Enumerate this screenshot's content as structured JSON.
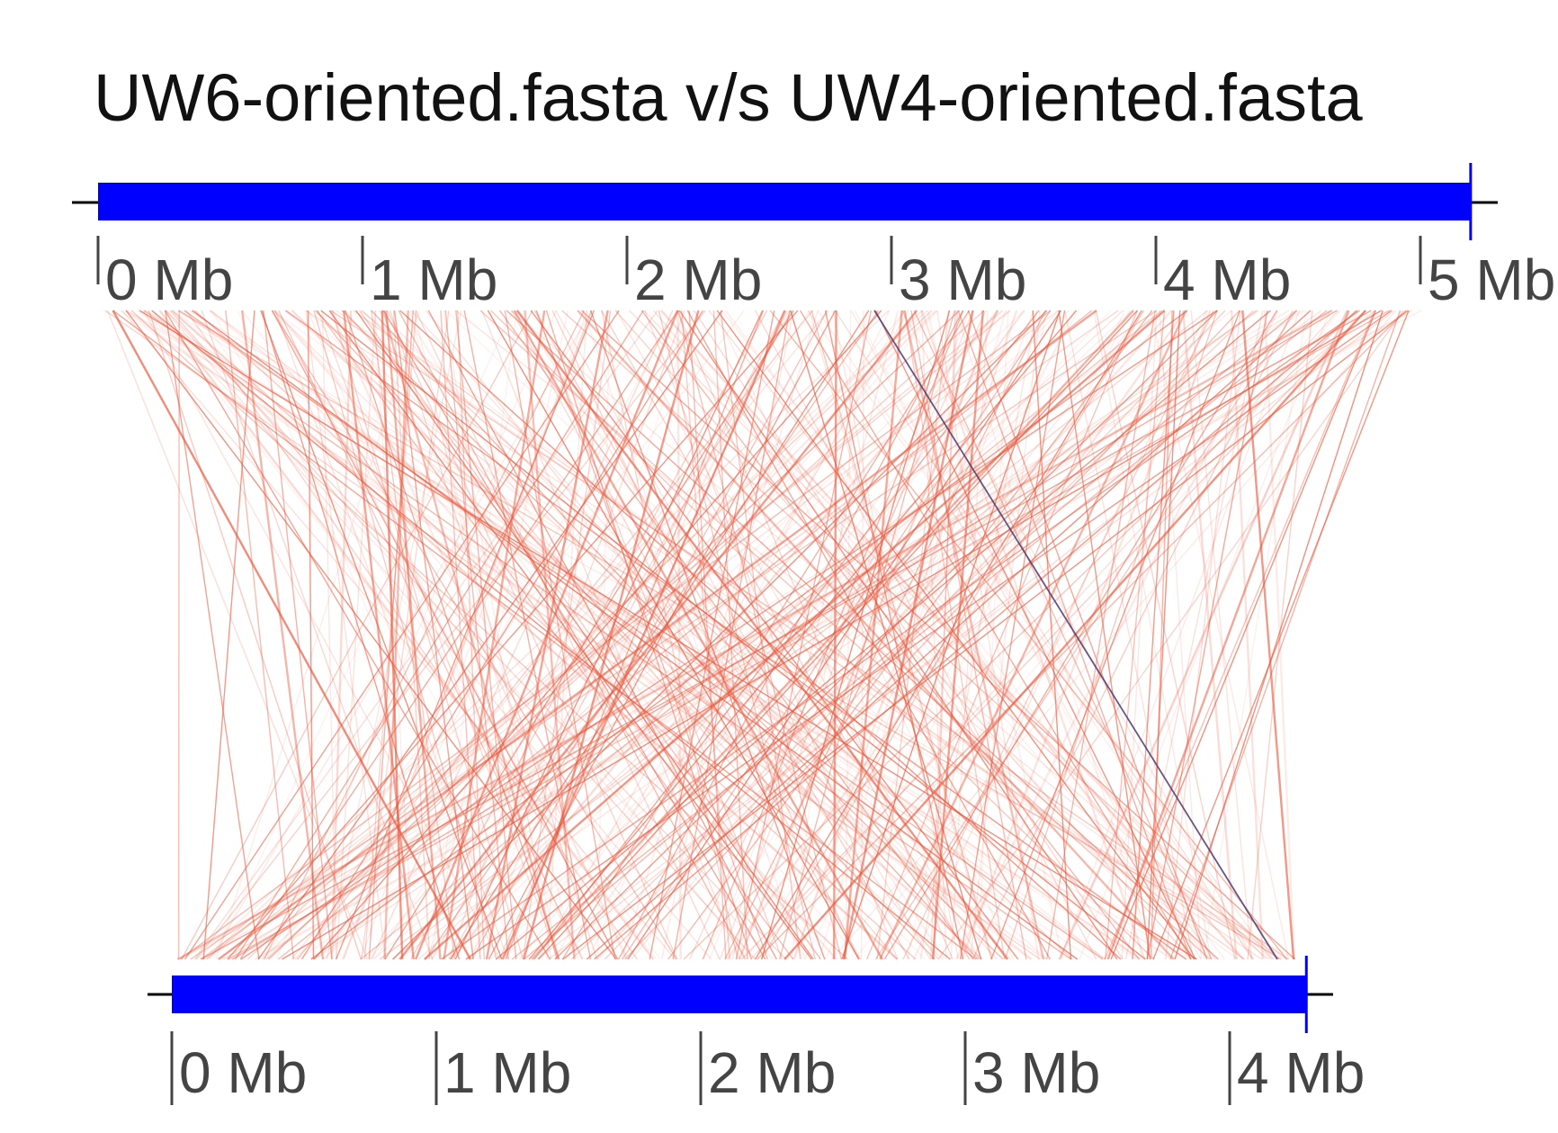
{
  "title": "UW6-oriented.fasta v/s UW4-oriented.fasta",
  "colors": {
    "genome_bar": "#0000ff",
    "link": "#e8573c",
    "link_highlight": "#4b3a6e",
    "tick": "#444444",
    "axis_line": "#000000"
  },
  "top_genome": {
    "name": "UW6-oriented.fasta",
    "length_mb": 5.19,
    "tick_labels": [
      "0 Mb",
      "1 Mb",
      "2 Mb",
      "3 Mb",
      "4 Mb",
      "5 Mb"
    ],
    "tick_values_mb": [
      0,
      1,
      2,
      3,
      4,
      5
    ]
  },
  "bottom_genome": {
    "name": "UW4-oriented.fasta",
    "length_mb": 4.29,
    "tick_labels": [
      "0 Mb",
      "1 Mb",
      "2 Mb",
      "3 Mb",
      "4 Mb"
    ],
    "tick_values_mb": [
      0,
      1,
      2,
      3,
      4
    ]
  }
}
